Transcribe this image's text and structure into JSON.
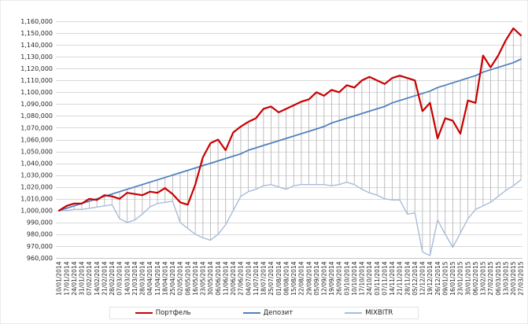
{
  "chart_data": {
    "type": "line",
    "title": "",
    "xlabel": "",
    "ylabel": "",
    "ylim": [
      960000,
      1160000
    ],
    "ytick_step": 10000,
    "grid": "horizontal",
    "high_low_lines": true,
    "legend_position": "bottom",
    "grid_color": "#d9d9d9",
    "axis_line_color": "#c6c6c6",
    "high_low_color": "#b7b7b7",
    "label_color": "#262626",
    "x": [
      "10/01/2014",
      "17/01/2014",
      "24/01/2014",
      "31/01/2014",
      "07/02/2014",
      "14/02/2014",
      "21/02/2014",
      "28/02/2014",
      "07/03/2014",
      "14/03/2014",
      "21/03/2014",
      "28/03/2014",
      "04/04/2014",
      "11/04/2014",
      "18/04/2014",
      "25/04/2014",
      "02/05/2014",
      "08/05/2014",
      "16/05/2014",
      "23/05/2014",
      "30/05/2014",
      "06/06/2014",
      "11/06/2014",
      "20/06/2014",
      "27/06/2014",
      "04/07/2014",
      "11/07/2014",
      "18/07/2014",
      "25/07/2014",
      "01/08/2014",
      "08/08/2014",
      "15/08/2014",
      "22/08/2014",
      "29/08/2014",
      "05/09/2014",
      "12/09/2014",
      "19/09/2014",
      "26/09/2014",
      "03/10/2014",
      "10/10/2014",
      "17/10/2014",
      "24/10/2014",
      "03/11/2014",
      "07/11/2014",
      "14/11/2014",
      "21/11/2014",
      "28/11/2014",
      "05/12/2014",
      "12/12/2014",
      "19/12/2014",
      "26/12/2014",
      "09/01/2015",
      "16/01/2015",
      "23/01/2015",
      "30/01/2015",
      "06/02/2015",
      "13/02/2015",
      "27/02/2015",
      "06/03/2015",
      "13/03/2015",
      "20/03/2015",
      "27/03/2015"
    ],
    "series": [
      {
        "name": "Портфель",
        "key": "portfolio",
        "color": "#c80000",
        "values": [
          1000000,
          1004000,
          1006000,
          1006000,
          1010000,
          1009000,
          1013000,
          1012000,
          1010000,
          1015000,
          1014000,
          1013000,
          1016000,
          1015000,
          1019000,
          1014000,
          1007000,
          1005000,
          1022000,
          1045000,
          1057000,
          1060000,
          1051000,
          1066000,
          1071000,
          1075000,
          1078000,
          1086000,
          1088000,
          1083000,
          1086000,
          1089000,
          1092000,
          1094000,
          1100000,
          1097000,
          1102000,
          1100000,
          1106000,
          1104000,
          1110000,
          1113000,
          1110000,
          1107000,
          1112000,
          1114000,
          1112000,
          1110000,
          1084000,
          1091000,
          1061000,
          1078000,
          1076000,
          1065000,
          1093000,
          1091000,
          1131000,
          1121000,
          1131000,
          1144000,
          1154000,
          1148000
        ]
      },
      {
        "name": "Депозит",
        "key": "deposit",
        "color": "#4f81bd",
        "values": [
          1000000,
          1002000,
          1004000,
          1006000,
          1008000,
          1010000,
          1012000,
          1014000,
          1016000,
          1018000,
          1020000,
          1022000,
          1024000,
          1026000,
          1028000,
          1030000,
          1032000,
          1034000,
          1036000,
          1038000,
          1040000,
          1042000,
          1044000,
          1046000,
          1048000,
          1051000,
          1053000,
          1055000,
          1057000,
          1059000,
          1061000,
          1063000,
          1065000,
          1067000,
          1069000,
          1071000,
          1074000,
          1076000,
          1078000,
          1080000,
          1082000,
          1084000,
          1086000,
          1088000,
          1091000,
          1093000,
          1095000,
          1097000,
          1099000,
          1101000,
          1104000,
          1106000,
          1108000,
          1110000,
          1112000,
          1114000,
          1117000,
          1119000,
          1121000,
          1123000,
          1125000,
          1128000
        ]
      },
      {
        "name": "MIXBITR",
        "key": "mixbitr",
        "color": "#a8bcd9",
        "values": [
          1000000,
          1000000,
          1001000,
          1001000,
          1002000,
          1003000,
          1004000,
          1005000,
          993000,
          990000,
          992000,
          997000,
          1003000,
          1006000,
          1007000,
          1008000,
          990000,
          985000,
          980000,
          977000,
          975000,
          980000,
          988000,
          1000000,
          1012000,
          1016000,
          1018000,
          1021000,
          1022000,
          1020000,
          1018000,
          1021000,
          1022000,
          1022000,
          1022000,
          1022000,
          1021000,
          1022000,
          1024000,
          1022000,
          1018000,
          1015000,
          1013000,
          1010000,
          1009000,
          1009000,
          997000,
          998000,
          965000,
          962000,
          992000,
          980000,
          969000,
          981000,
          993000,
          1001000,
          1004000,
          1007000,
          1012000,
          1017000,
          1021000,
          1026000
        ]
      }
    ]
  }
}
